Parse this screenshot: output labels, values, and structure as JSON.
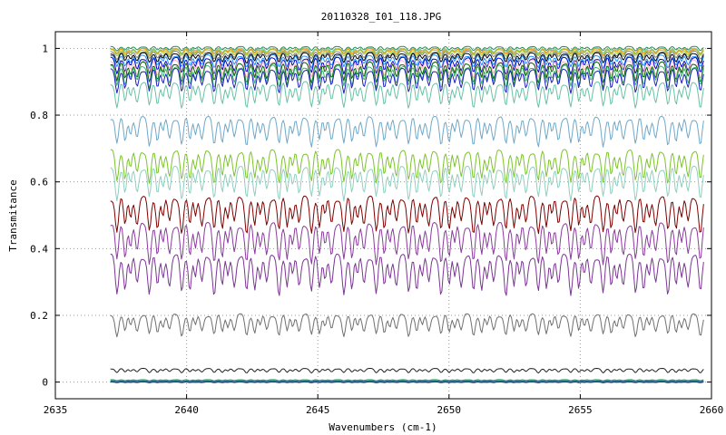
{
  "chart_data": {
    "type": "line",
    "title": "20110328_I01_118.JPG",
    "xlabel": "Wavenumbers (cm-1)",
    "ylabel": "Transmitance",
    "xlim": [
      2635,
      2660
    ],
    "ylim": [
      -0.05,
      1.05
    ],
    "xticks": [
      2635,
      2640,
      2645,
      2650,
      2655,
      2660
    ],
    "xtick_labels": [
      "2635",
      "2640",
      "2645",
      "2650",
      "2655",
      "2660"
    ],
    "yticks": [
      0,
      0.2,
      0.4,
      0.6,
      0.8,
      1
    ],
    "ytick_labels": [
      "0",
      "0.2",
      "0.4",
      "0.6",
      "0.8",
      "1"
    ],
    "grid": true,
    "legend": "none",
    "x_range_data": [
      2637.1,
      2659.7
    ],
    "series": [
      {
        "color": "#2e8b57",
        "baseline": 1.005,
        "depth": 0.012
      },
      {
        "color": "#66cdaa",
        "baseline": 1.0,
        "depth": 0.014
      },
      {
        "color": "#ff8c00",
        "baseline": 0.998,
        "depth": 0.016
      },
      {
        "color": "#9acd32",
        "baseline": 0.995,
        "depth": 0.018
      },
      {
        "color": "#808080",
        "baseline": 0.99,
        "depth": 0.022
      },
      {
        "color": "#000000",
        "baseline": 0.985,
        "depth": 0.028
      },
      {
        "color": "#1e90ff",
        "baseline": 0.978,
        "depth": 0.035
      },
      {
        "color": "#0000cd",
        "baseline": 0.97,
        "depth": 0.045
      },
      {
        "color": "#ffb6c1",
        "baseline": 0.962,
        "depth": 0.05
      },
      {
        "color": "#006400",
        "baseline": 0.955,
        "depth": 0.055
      },
      {
        "color": "#3cb371",
        "baseline": 0.945,
        "depth": 0.06
      },
      {
        "color": "#2020c0",
        "baseline": 0.935,
        "depth": 0.065
      },
      {
        "color": "#66c2a5",
        "baseline": 0.895,
        "depth": 0.07
      },
      {
        "color": "#6fa8c8",
        "baseline": 0.79,
        "depth": 0.08
      },
      {
        "color": "#7cc42a",
        "baseline": 0.69,
        "depth": 0.09
      },
      {
        "color": "#8fcfbf",
        "baseline": 0.64,
        "depth": 0.09
      },
      {
        "color": "#800000",
        "baseline": 0.55,
        "depth": 0.1
      },
      {
        "color": "#8b3a9e",
        "baseline": 0.47,
        "depth": 0.11
      },
      {
        "color": "#7b3594",
        "baseline": 0.375,
        "depth": 0.11
      },
      {
        "color": "#707070",
        "baseline": 0.2,
        "depth": 0.06
      },
      {
        "color": "#222222",
        "baseline": 0.04,
        "depth": 0.012
      },
      {
        "color": "#1a9850",
        "baseline": 0.007,
        "depth": 0.003
      },
      {
        "color": "#4575b4",
        "baseline": 0.004,
        "depth": 0.002
      },
      {
        "color": "#00796b",
        "baseline": 0.002,
        "depth": 0.002
      },
      {
        "color": "#1f3b70",
        "baseline": 0.0,
        "depth": 0.002
      }
    ]
  }
}
